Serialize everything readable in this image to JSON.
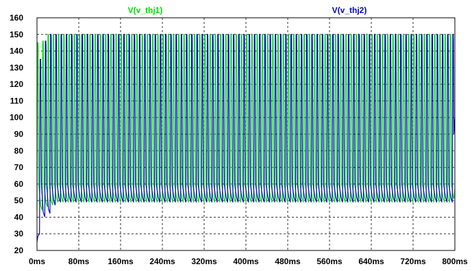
{
  "chart_data": {
    "type": "line",
    "title": "",
    "xlabel": "",
    "ylabel": "",
    "xlim": [
      0,
      800
    ],
    "ylim": [
      20,
      160
    ],
    "x_unit": "ms",
    "x_ticks": [
      0,
      80,
      160,
      240,
      320,
      400,
      480,
      560,
      640,
      720,
      800
    ],
    "x_tick_labels": [
      "0ms",
      "80ms",
      "160ms",
      "240ms",
      "320ms",
      "400ms",
      "480ms",
      "560ms",
      "640ms",
      "720ms",
      "800ms"
    ],
    "y_ticks": [
      20,
      30,
      40,
      50,
      60,
      70,
      80,
      90,
      100,
      110,
      120,
      130,
      140,
      150,
      160
    ],
    "y_tick_labels": [
      "20",
      "30",
      "40",
      "50",
      "60",
      "70",
      "80",
      "90",
      "100",
      "110",
      "120",
      "130",
      "140",
      "150",
      "160"
    ],
    "grid": true,
    "legend_position": "top",
    "series": [
      {
        "name": "V(v_thj1)",
        "color": "#00e000",
        "period_ms": 10.0,
        "phase_ms": 0.0,
        "high_value": 150,
        "low_value": 49,
        "shoulder_value": 60,
        "startup": {
          "first_peak": 145,
          "first_trough": 44
        },
        "final_value": 57
      },
      {
        "name": "V(v_thj2)",
        "color": "#0000d0",
        "period_ms": 10.0,
        "phase_ms": 5.0,
        "high_value": 150,
        "low_value": 49,
        "shoulder_value": 60,
        "startup": {
          "initial_value": 25,
          "plateau_value": 30,
          "first_peak": 135,
          "first_trough": 40
        },
        "final_value": 100
      }
    ],
    "plot_background": "#ffffff",
    "grid_color": "#000000"
  }
}
